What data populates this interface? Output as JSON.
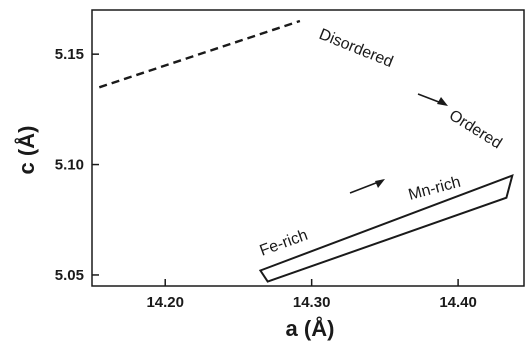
{
  "chart_data": {
    "type": "line",
    "xlabel": "a (Å)",
    "ylabel": "c (Å)",
    "xlim": [
      14.15,
      14.445
    ],
    "ylim": [
      5.045,
      5.17
    ],
    "x_ticks": [
      14.2,
      14.3,
      14.4
    ],
    "x_tick_labels": [
      "14.20",
      "14.30",
      "14.40"
    ],
    "y_ticks": [
      5.05,
      5.1,
      5.15
    ],
    "y_tick_labels": [
      "5.05",
      "5.10",
      "5.15"
    ],
    "grid": false,
    "series": [
      {
        "style": "dashed",
        "points": [
          [
            14.155,
            5.135
          ],
          [
            14.292,
            5.165
          ]
        ]
      },
      {
        "style": "solid-closed",
        "points": [
          [
            14.265,
            5.052
          ],
          [
            14.437,
            5.095
          ],
          [
            14.433,
            5.085
          ],
          [
            14.27,
            5.047
          ]
        ]
      }
    ],
    "annotations": [
      {
        "id": "disordered",
        "text": "Disordered"
      },
      {
        "id": "ordered",
        "text": "Ordered"
      },
      {
        "id": "fe-rich",
        "text": "Fe-rich"
      },
      {
        "id": "mn-rich",
        "text": "Mn-rich"
      }
    ],
    "colors": {
      "ink": "#1a1a1a",
      "background": "#ffffff"
    }
  }
}
